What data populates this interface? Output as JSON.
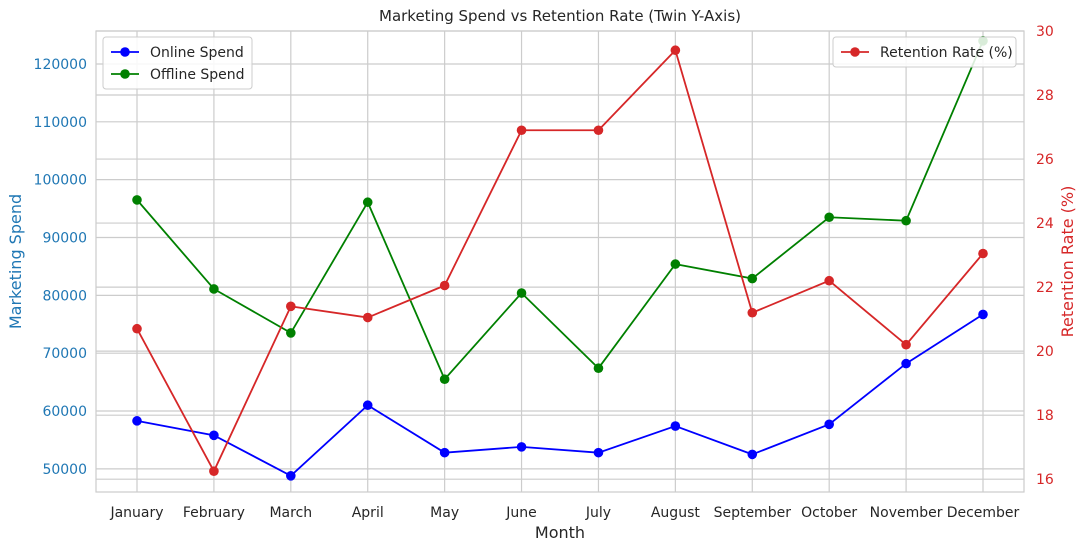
{
  "chart_data": {
    "type": "line",
    "title": "Marketing Spend vs Retention Rate (Twin Y-Axis)",
    "xlabel": "Month",
    "ylabel_left": "Marketing Spend",
    "ylabel_right": "Retention Rate (%)",
    "categories": [
      "January",
      "February",
      "March",
      "April",
      "May",
      "June",
      "July",
      "August",
      "September",
      "October",
      "November",
      "December"
    ],
    "left_axis": {
      "ylim": [
        46000,
        125700
      ],
      "ticks": [
        50000,
        60000,
        70000,
        80000,
        90000,
        100000,
        110000,
        120000
      ],
      "color": "#1f77b4"
    },
    "right_axis": {
      "ylim": [
        15.6,
        30.0
      ],
      "ticks": [
        16,
        18,
        20,
        22,
        24,
        26,
        28,
        30
      ],
      "color": "#d62728"
    },
    "series": [
      {
        "name": "Online Spend",
        "axis": "left",
        "color": "#0000ff",
        "values": [
          58300,
          55800,
          48800,
          61000,
          52800,
          53800,
          52800,
          57400,
          52500,
          57700,
          68200,
          76700
        ]
      },
      {
        "name": "Offline Spend",
        "axis": "left",
        "color": "#008000",
        "values": [
          96500,
          81100,
          73500,
          96100,
          65500,
          80400,
          67400,
          85400,
          82900,
          93500,
          92900,
          124000
        ]
      },
      {
        "name": "Retention Rate (%)",
        "axis": "right",
        "color": "#d62728",
        "values": [
          20.7,
          16.25,
          21.4,
          21.05,
          22.05,
          26.9,
          26.9,
          29.4,
          21.2,
          22.2,
          20.2,
          23.05
        ]
      }
    ],
    "legend_left": {
      "placement": "top-left",
      "entries": [
        "Online Spend",
        "Offline Spend"
      ]
    },
    "legend_right": {
      "placement": "top-right",
      "entries": [
        "Retention Rate (%)"
      ]
    },
    "grid": true
  }
}
